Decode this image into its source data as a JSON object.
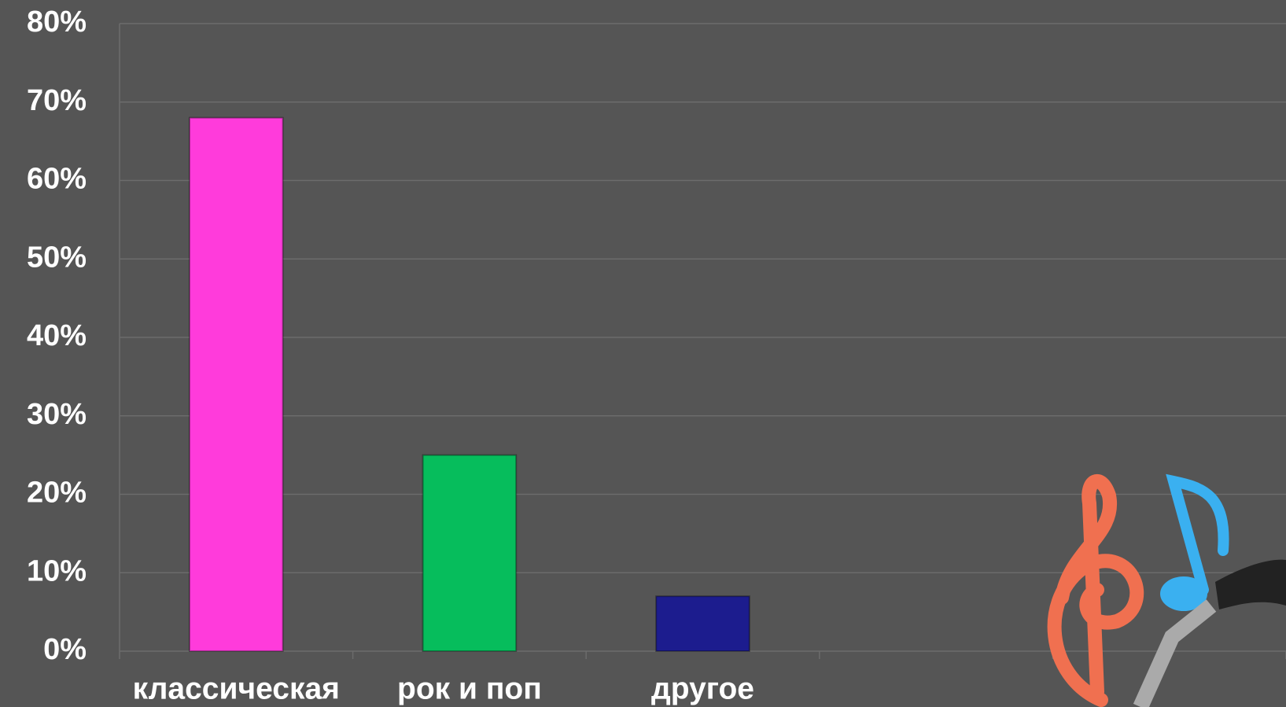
{
  "chart_data": {
    "type": "bar",
    "categories": [
      "классическая",
      "рок и поп",
      "другое",
      null,
      null
    ],
    "values": [
      68,
      25,
      7,
      null,
      null
    ],
    "colors": [
      "#ff3bdb",
      "#06bd5c",
      "#1c1c8e",
      null,
      null
    ],
    "ylim": [
      0,
      80
    ],
    "yticks": [
      {
        "value": 0,
        "label": "0%"
      },
      {
        "value": 10,
        "label": "10%"
      },
      {
        "value": 20,
        "label": "20%"
      },
      {
        "value": 30,
        "label": "30%"
      },
      {
        "value": 40,
        "label": "40%"
      },
      {
        "value": 50,
        "label": "50%"
      },
      {
        "value": 60,
        "label": "60%"
      },
      {
        "value": 70,
        "label": "70%"
      },
      {
        "value": 80,
        "label": "80%"
      }
    ],
    "grid": true
  }
}
